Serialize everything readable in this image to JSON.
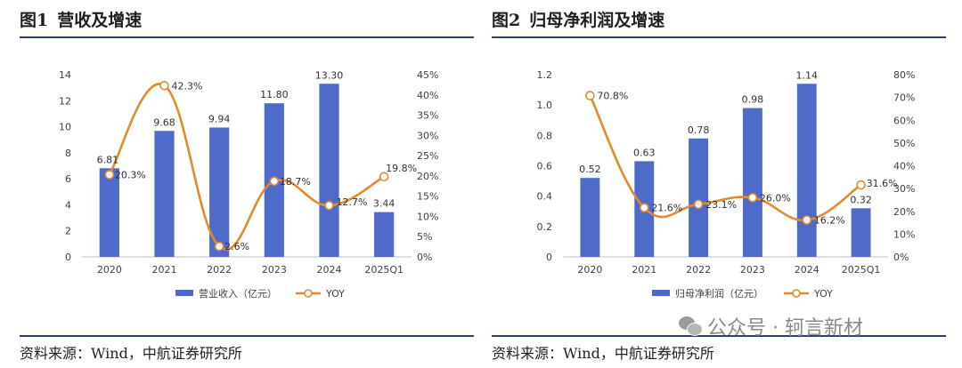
{
  "figures": [
    {
      "fig_no": "图1",
      "title": "营收及增速",
      "source": "资料来源：Wind，中航证券研究所",
      "legend": {
        "bar": "营业收入（亿元）",
        "line": "YOY"
      }
    },
    {
      "fig_no": "图2",
      "title": "归母净利润及增速",
      "source": "资料来源：Wind，中航证券研究所",
      "legend": {
        "bar": "归母净利润（亿元）",
        "line": "YOY"
      }
    }
  ],
  "watermark": "公众号 · 轲言新材",
  "colors": {
    "bar": "#4f6bc9",
    "line": "#e38b2c",
    "rule": "#2e3f7a"
  },
  "chart_data": [
    {
      "type": "bar",
      "categories": [
        "2020",
        "2021",
        "2022",
        "2023",
        "2024",
        "2025Q1"
      ],
      "series": [
        {
          "name": "营业收入（亿元）",
          "type": "bar",
          "axis": "left",
          "values": [
            6.81,
            9.68,
            9.94,
            11.8,
            13.3,
            3.44
          ],
          "labels": [
            "6.81",
            "9.68",
            "9.94",
            "11.80",
            "13.30",
            "3.44"
          ]
        },
        {
          "name": "YOY",
          "type": "line",
          "axis": "right",
          "values": [
            20.3,
            42.3,
            2.6,
            18.7,
            12.7,
            19.8
          ],
          "labels": [
            "20.3%",
            "42.3%",
            "2.6%",
            "18.7%",
            "12.7%",
            "19.8%"
          ]
        }
      ],
      "ylim": [
        0,
        14
      ],
      "yticks": [
        "0",
        "2",
        "4",
        "6",
        "8",
        "10",
        "12",
        "14"
      ],
      "y2lim": [
        0,
        45
      ],
      "y2ticks": [
        "0%",
        "5%",
        "10%",
        "15%",
        "20%",
        "25%",
        "30%",
        "35%",
        "40%",
        "45%"
      ],
      "legend_position": "bottom"
    },
    {
      "type": "bar",
      "categories": [
        "2020",
        "2021",
        "2022",
        "2023",
        "2024",
        "2025Q1"
      ],
      "series": [
        {
          "name": "归母净利润（亿元）",
          "type": "bar",
          "axis": "left",
          "values": [
            0.52,
            0.63,
            0.78,
            0.98,
            1.14,
            0.32
          ],
          "labels": [
            "0.52",
            "0.63",
            "0.78",
            "0.98",
            "1.14",
            "0.32"
          ]
        },
        {
          "name": "YOY",
          "type": "line",
          "axis": "right",
          "values": [
            70.8,
            21.6,
            23.1,
            26.0,
            16.2,
            31.6
          ],
          "labels": [
            "70.8%",
            "21.6%",
            "23.1%",
            "26.0%",
            "16.2%",
            "31.6%"
          ]
        }
      ],
      "ylim": [
        0,
        1.2
      ],
      "yticks": [
        "0",
        "0.2",
        "0.4",
        "0.6",
        "0.8",
        "1.0",
        "1.2"
      ],
      "y2lim": [
        0,
        80
      ],
      "y2ticks": [
        "0%",
        "10%",
        "20%",
        "30%",
        "40%",
        "50%",
        "60%",
        "70%",
        "80%"
      ],
      "legend_position": "bottom"
    }
  ]
}
